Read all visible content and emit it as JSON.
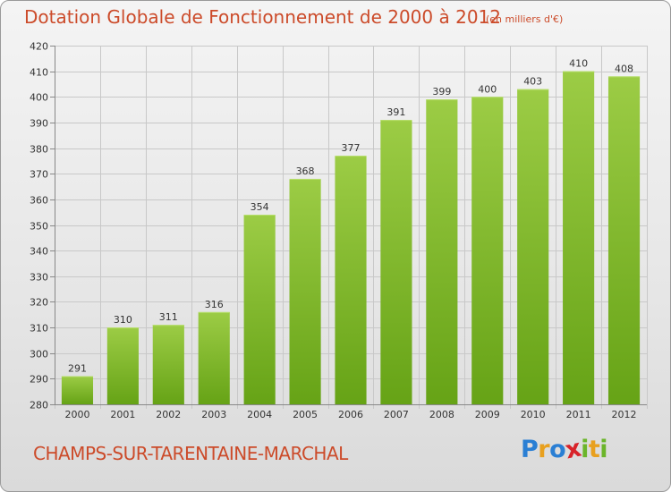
{
  "chart_data": {
    "type": "bar",
    "title": "Dotation Globale de Fonctionnement de 2000 à 2012",
    "unit_note": "(en milliers d'€)",
    "categories": [
      "2000",
      "2001",
      "2002",
      "2003",
      "2004",
      "2005",
      "2006",
      "2007",
      "2008",
      "2009",
      "2010",
      "2011",
      "2012"
    ],
    "values": [
      291,
      310,
      311,
      316,
      354,
      368,
      377,
      391,
      399,
      400,
      403,
      410,
      408
    ],
    "ylim": [
      280,
      420
    ],
    "yticks": [
      280,
      290,
      300,
      310,
      320,
      330,
      340,
      350,
      360,
      370,
      380,
      390,
      400,
      410,
      420
    ],
    "xlabel": "",
    "ylabel": "",
    "grid": true
  },
  "footer": {
    "commune": "CHAMPS-SUR-TARENTAINE-MARCHAL",
    "logo_letters": [
      "P",
      "r",
      "o",
      "x",
      "i",
      "t",
      "i"
    ]
  },
  "colors": {
    "title": "#cc4b2a",
    "bar_top": "#9ccc45",
    "bar_bottom": "#66a316",
    "grid": "#c8c8c8",
    "logo": [
      "#2a7fd4",
      "#e8a01e",
      "#2a7fd4",
      "#d8232a",
      "#6bb52a",
      "#e8a01e",
      "#6bb52a"
    ]
  }
}
